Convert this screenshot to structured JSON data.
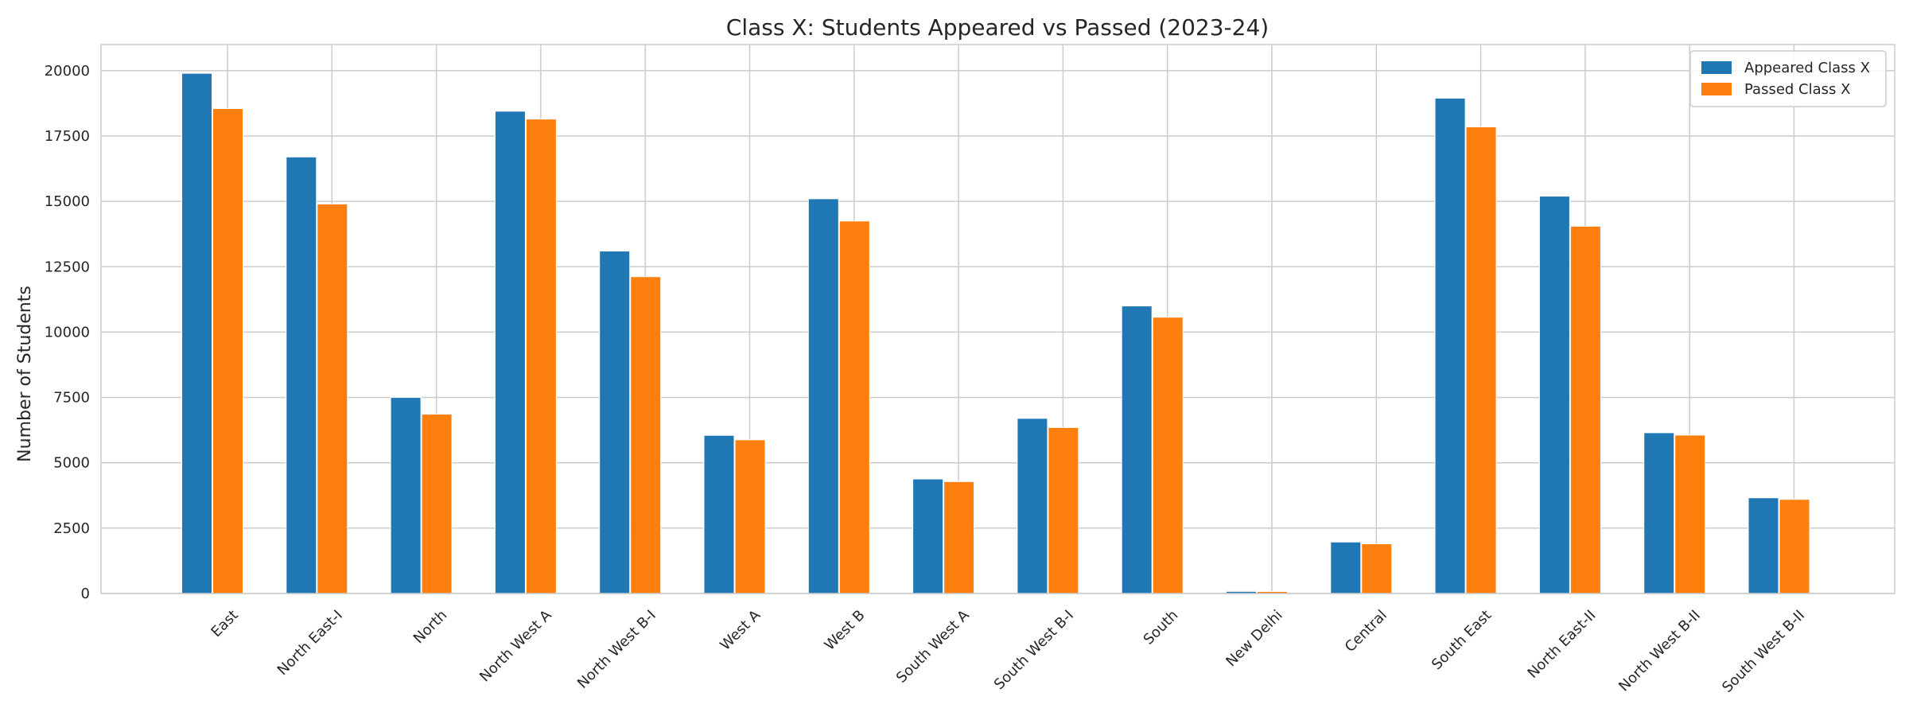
{
  "chart_data": {
    "type": "bar",
    "title": "Class X: Students Appeared vs Passed (2023-24)",
    "xlabel": "",
    "ylabel": "Number of Students",
    "ylim": [
      0,
      21000
    ],
    "yticks": [
      0,
      2500,
      5000,
      7500,
      10000,
      12500,
      15000,
      17500,
      20000
    ],
    "grid": true,
    "legend_position": "top-right",
    "categories": [
      "East",
      "North East-I",
      "North",
      "North West A",
      "North West B-I",
      "West A",
      "West B",
      "South West A",
      "South West B-I",
      "South",
      "New Delhi",
      "Central",
      "South East",
      "North East-II",
      "North West B-II",
      "South West B-II"
    ],
    "series": [
      {
        "name": "Appeared Class X",
        "color": "#1f77b4",
        "values": [
          19900,
          16700,
          7500,
          18450,
          13100,
          6050,
          15100,
          4380,
          6700,
          11000,
          80,
          1970,
          18950,
          15200,
          6150,
          3660
        ]
      },
      {
        "name": "Passed Class X",
        "color": "#ff7f0e",
        "values": [
          18550,
          14900,
          6860,
          18150,
          12120,
          5880,
          14250,
          4280,
          6350,
          10570,
          75,
          1900,
          17850,
          14050,
          6060,
          3600
        ]
      }
    ]
  }
}
